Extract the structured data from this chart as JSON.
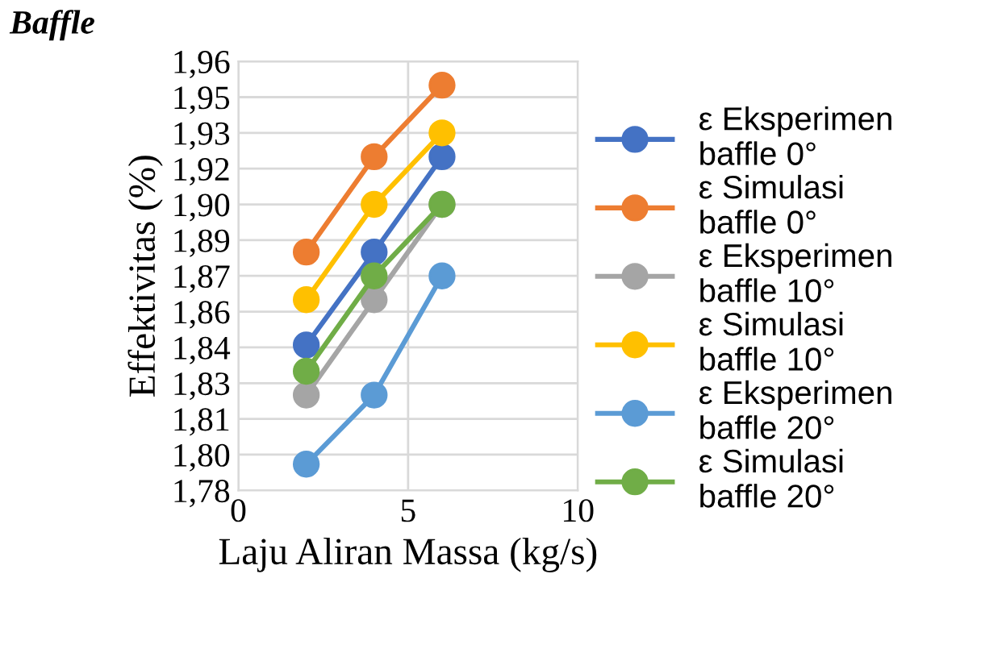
{
  "chart_data": {
    "type": "line",
    "title": "Baffle",
    "xlabel": "Laju Aliran Massa (kg/s)",
    "ylabel": "Effektivitas (%)",
    "x": [
      2,
      4,
      6
    ],
    "series": [
      {
        "name": "ε Eksperimen baffle 0°",
        "color": "#4472c4",
        "values": [
          1.841,
          1.88,
          1.92
        ]
      },
      {
        "name": "ε Simulasi baffle 0°",
        "color": "#ed7d31",
        "values": [
          1.88,
          1.92,
          1.95
        ]
      },
      {
        "name": "ε Eksperimen baffle 10°",
        "color": "#a5a5a5",
        "values": [
          1.82,
          1.86,
          1.9
        ]
      },
      {
        "name": "ε Simulasi baffle 10°",
        "color": "#ffc000",
        "values": [
          1.86,
          1.9,
          1.93
        ]
      },
      {
        "name": "ε Eksperimen baffle 20°",
        "color": "#5b9bd5",
        "values": [
          1.791,
          1.82,
          1.87
        ]
      },
      {
        "name": "ε Simulasi baffle 20°",
        "color": "#70ad47",
        "values": [
          1.83,
          1.87,
          1.9
        ]
      }
    ],
    "xlim": [
      0,
      10
    ],
    "xticks": [
      0,
      5,
      10
    ],
    "ylim": [
      1.78,
      1.96
    ],
    "yticks": [
      {
        "value": 1.78,
        "label": "1,78"
      },
      {
        "value": 1.795,
        "label": "1,80"
      },
      {
        "value": 1.81,
        "label": "1,81"
      },
      {
        "value": 1.825,
        "label": "1,83"
      },
      {
        "value": 1.84,
        "label": "1,84"
      },
      {
        "value": 1.855,
        "label": "1,86"
      },
      {
        "value": 1.87,
        "label": "1,87"
      },
      {
        "value": 1.885,
        "label": "1,89"
      },
      {
        "value": 1.9,
        "label": "1,90"
      },
      {
        "value": 1.915,
        "label": "1,92"
      },
      {
        "value": 1.93,
        "label": "1,93"
      },
      {
        "value": 1.945,
        "label": "1,95"
      },
      {
        "value": 1.96,
        "label": "1,96"
      }
    ],
    "grid": true,
    "legend": "right",
    "marker": "circle",
    "line_style": "solid"
  }
}
